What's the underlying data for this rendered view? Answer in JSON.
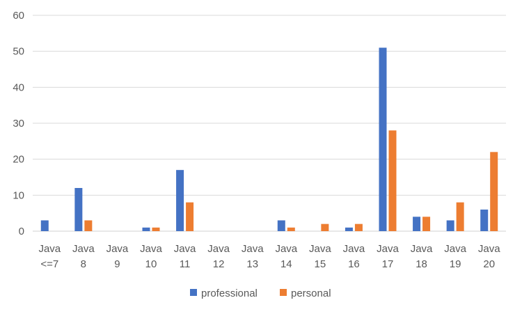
{
  "chart_data": {
    "type": "bar",
    "categories": [
      [
        "Java",
        "<=7"
      ],
      [
        "Java",
        "8"
      ],
      [
        "Java",
        "9"
      ],
      [
        "Java",
        "10"
      ],
      [
        "Java",
        "11"
      ],
      [
        "Java",
        "12"
      ],
      [
        "Java",
        "13"
      ],
      [
        "Java",
        "14"
      ],
      [
        "Java",
        "15"
      ],
      [
        "Java",
        "16"
      ],
      [
        "Java",
        "17"
      ],
      [
        "Java",
        "18"
      ],
      [
        "Java",
        "19"
      ],
      [
        "Java",
        "20"
      ]
    ],
    "series": [
      {
        "name": "professional",
        "color": "#4472C4",
        "values": [
          3,
          12,
          0,
          1,
          17,
          0,
          0,
          3,
          0,
          1,
          51,
          4,
          3,
          6
        ]
      },
      {
        "name": "personal",
        "color": "#ED7D31",
        "values": [
          0,
          3,
          0,
          1,
          8,
          0,
          0,
          1,
          2,
          2,
          28,
          4,
          8,
          22
        ]
      }
    ],
    "yticks": [
      0,
      10,
      20,
      30,
      40,
      50,
      60
    ],
    "ylim": [
      0,
      60
    ],
    "grid": true,
    "legend_position": "bottom"
  }
}
